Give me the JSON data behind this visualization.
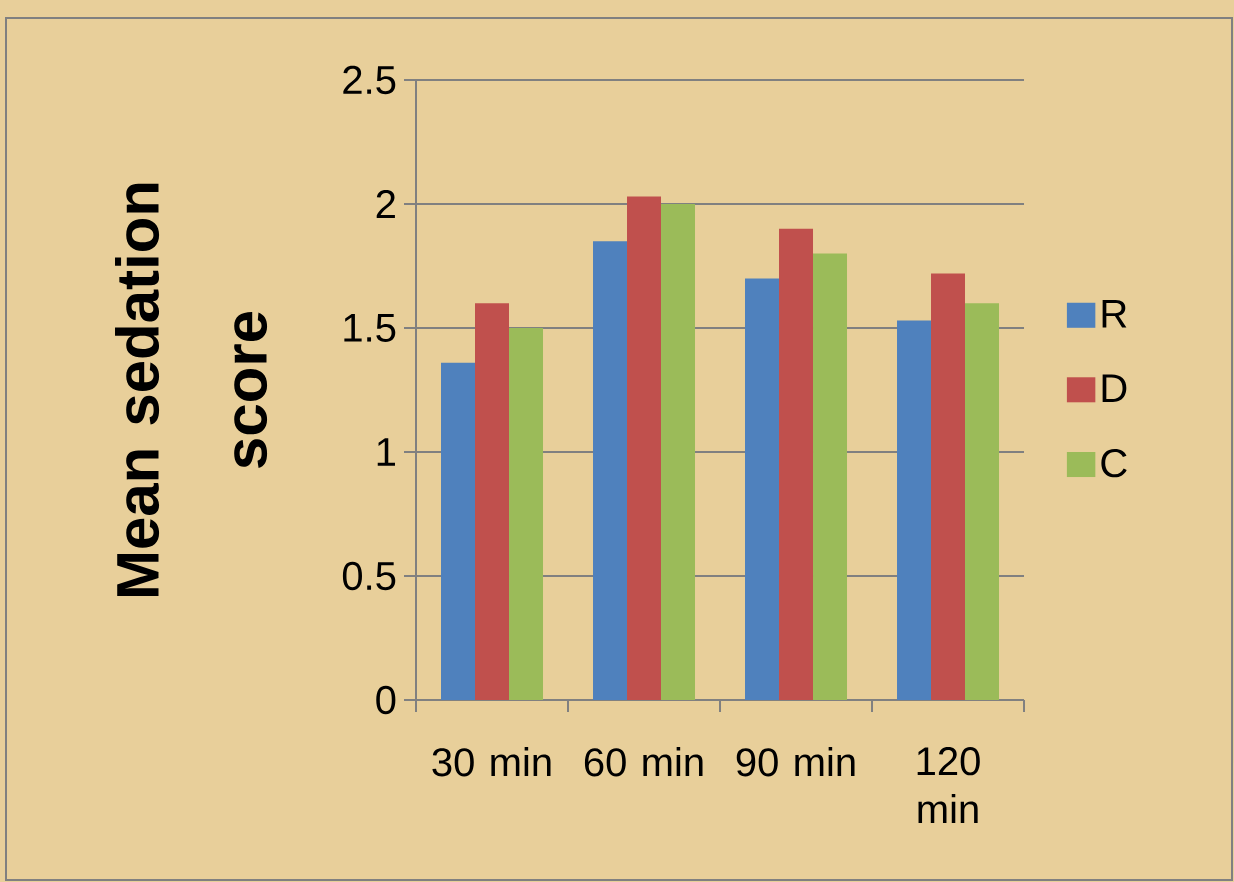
{
  "chart_data": {
    "type": "bar",
    "ylabel": "Mean sedation score",
    "categories": [
      "30 min",
      "60 min",
      "90 min",
      "120 min"
    ],
    "series": [
      {
        "name": "R",
        "color": "#4f81bd",
        "values": [
          1.36,
          1.85,
          1.7,
          1.53
        ]
      },
      {
        "name": "D",
        "color": "#c0504d",
        "values": [
          1.6,
          2.03,
          1.9,
          1.72
        ]
      },
      {
        "name": "C",
        "color": "#9bbb59",
        "values": [
          1.5,
          2.0,
          1.8,
          1.6
        ]
      }
    ],
    "ylim": [
      0,
      2.5
    ],
    "yticks": [
      0,
      0.5,
      1,
      1.5,
      2,
      2.5
    ],
    "grid": "y",
    "legend": "right"
  }
}
